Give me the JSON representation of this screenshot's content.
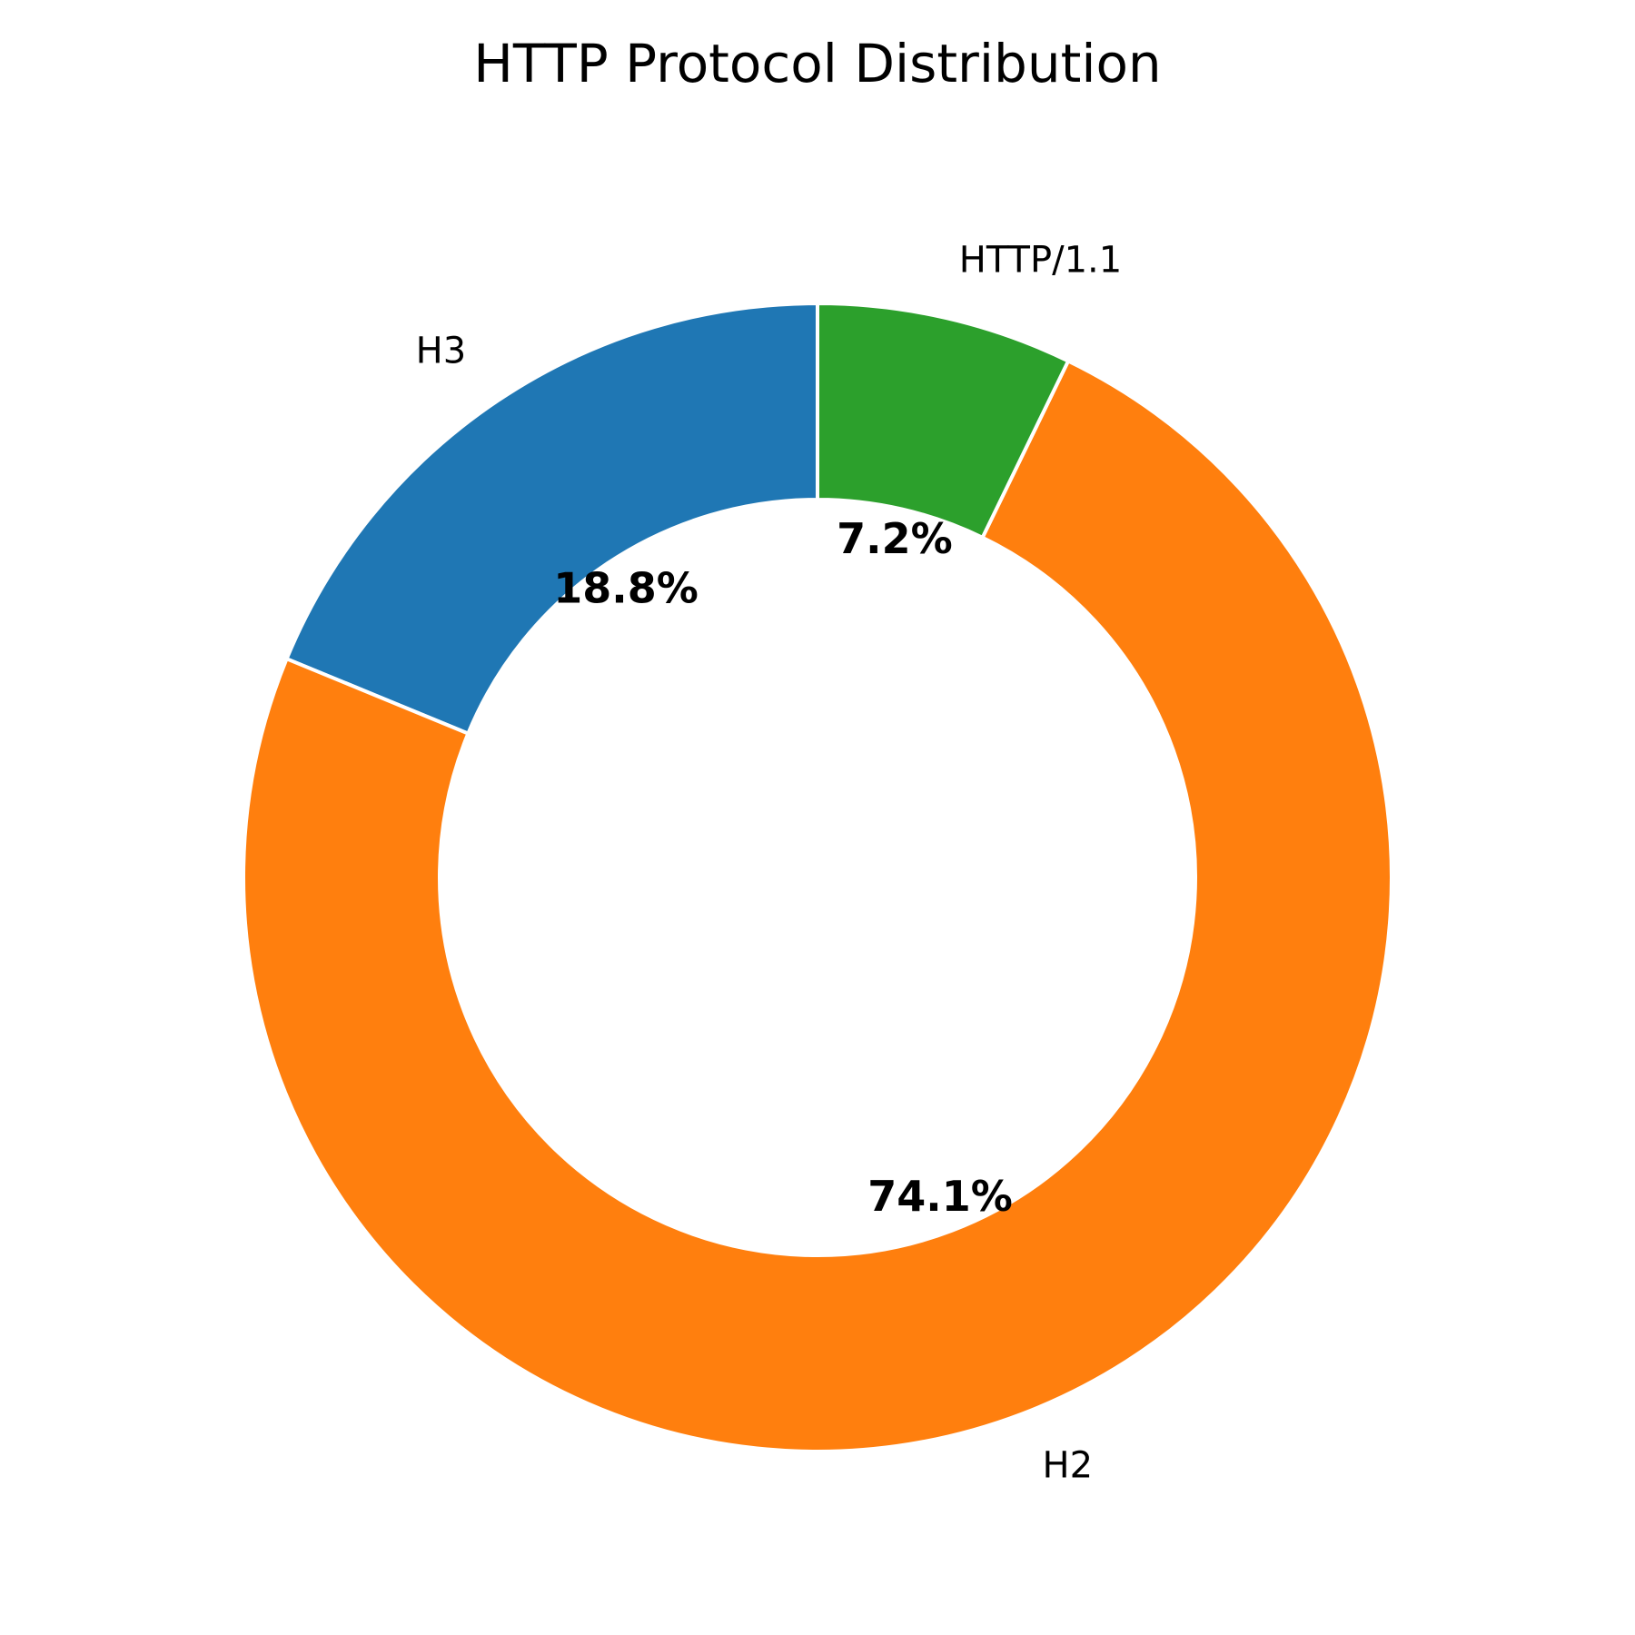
{
  "chart_data": {
    "type": "pie",
    "variant": "donut",
    "title": "HTTP Protocol Distribution",
    "start_angle_deg": 90,
    "direction": "counterclockwise",
    "slices": [
      {
        "label": "H3",
        "value": 18.8,
        "pct_label": "18.8%",
        "color": "#1f77b4"
      },
      {
        "label": "H2",
        "value": 74.1,
        "pct_label": "74.1%",
        "color": "#ff7f0e"
      },
      {
        "label": "HTTP/1.1",
        "value": 7.2,
        "pct_label": "7.2%",
        "color": "#2ca02c"
      }
    ],
    "legend": "none",
    "grid": false
  }
}
